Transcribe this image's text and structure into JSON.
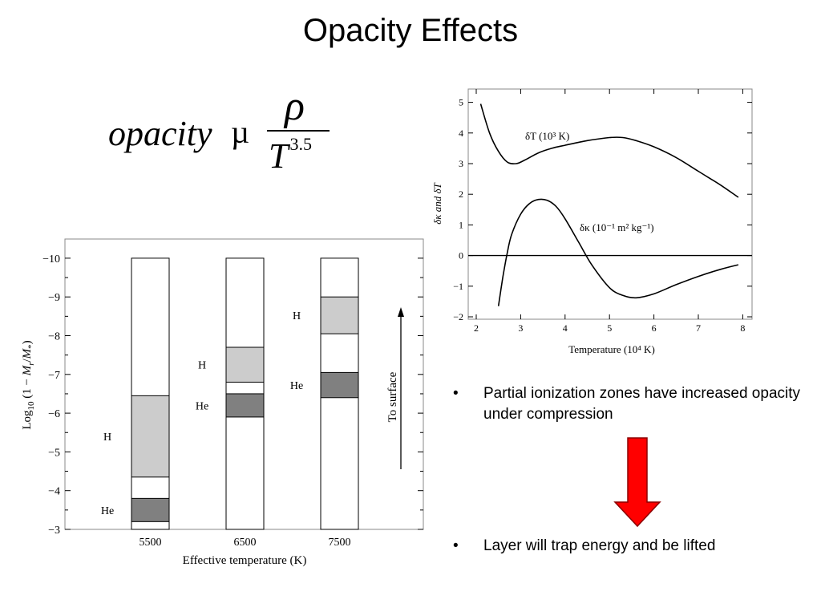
{
  "title": "Opacity Effects",
  "formula": {
    "lhs": "opacity",
    "relation": "µ",
    "numerator": "ρ",
    "denominator": "T",
    "exponent": "3.5"
  },
  "bullets": [
    "Partial ionization zones have increased opacity under compression",
    "Layer will trap energy and be lifted"
  ],
  "bullet_symbol": "•",
  "arrow": {
    "icon": "down-arrow-icon",
    "color": "#ff0000",
    "outline": "#8b0000"
  },
  "chart_data": [
    {
      "type": "bar",
      "title": "",
      "xlabel": "Effective temperature (K)",
      "ylabel": "Log10 (1 − Mr/M*)",
      "ylabel_parts": {
        "a": "Log",
        "sub": "10",
        "b": " (1 − ",
        "c": "M",
        "csub": "r",
        "d": "/",
        "e": "M",
        "esub": "*",
        "f": ")"
      },
      "categories": [
        "5500",
        "6500",
        "7500"
      ],
      "ylim": [
        -3,
        -10.5
      ],
      "yticks": [
        "−10",
        "−9",
        "−8",
        "−7",
        "−6",
        "−5",
        "−4",
        "−3"
      ],
      "ytick_values": [
        -10,
        -9,
        -8,
        -7,
        -6,
        -5,
        -4,
        -3
      ],
      "column_range": [
        -10,
        -3
      ],
      "zones": [
        {
          "category": "5500",
          "H": [
            -4.35,
            -6.45
          ],
          "He": [
            -3.2,
            -3.8
          ]
        },
        {
          "category": "6500",
          "H": [
            -6.8,
            -7.7
          ],
          "He": [
            -5.9,
            -6.5
          ]
        },
        {
          "category": "7500",
          "H": [
            -8.05,
            -9.0
          ],
          "He": [
            -6.4,
            -7.05
          ]
        }
      ],
      "zone_labels": {
        "H": "H",
        "He": "He"
      },
      "zone_colors": {
        "H": "#cccccc",
        "He": "#808080"
      },
      "annotation": "To surface"
    },
    {
      "type": "line",
      "title": "",
      "xlabel": "Temperature (10⁴ K)",
      "ylabel": "δκ and δT",
      "xlim": [
        1.8,
        8.2
      ],
      "ylim": [
        -2,
        5.3
      ],
      "xticks": [
        2,
        3,
        4,
        5,
        6,
        7,
        8
      ],
      "yticks": [
        -2,
        -1,
        0,
        1,
        2,
        3,
        4,
        5
      ],
      "series": [
        {
          "name": "δT (10³ K)",
          "x": [
            2.1,
            2.3,
            2.5,
            2.7,
            2.9,
            3.1,
            3.4,
            3.7,
            4.0,
            4.5,
            5.0,
            5.3,
            5.6,
            6.0,
            6.5,
            7.0,
            7.5,
            7.9
          ],
          "y": [
            4.95,
            4.0,
            3.4,
            3.05,
            3.0,
            3.12,
            3.35,
            3.5,
            3.6,
            3.75,
            3.85,
            3.85,
            3.75,
            3.55,
            3.2,
            2.75,
            2.3,
            1.9
          ]
        },
        {
          "name": "δκ (10⁻¹ m² kg⁻¹)",
          "x": [
            2.5,
            2.6,
            2.7,
            2.8,
            3.0,
            3.2,
            3.4,
            3.6,
            3.8,
            4.0,
            4.3,
            4.6,
            5.0,
            5.3,
            5.6,
            6.0,
            6.5,
            7.0,
            7.5,
            7.9
          ],
          "y": [
            -1.65,
            -0.7,
            0.1,
            0.7,
            1.35,
            1.7,
            1.83,
            1.8,
            1.6,
            1.2,
            0.45,
            -0.3,
            -1.05,
            -1.3,
            -1.38,
            -1.25,
            -0.95,
            -0.68,
            -0.45,
            -0.3
          ]
        }
      ],
      "zero_line": true
    }
  ]
}
